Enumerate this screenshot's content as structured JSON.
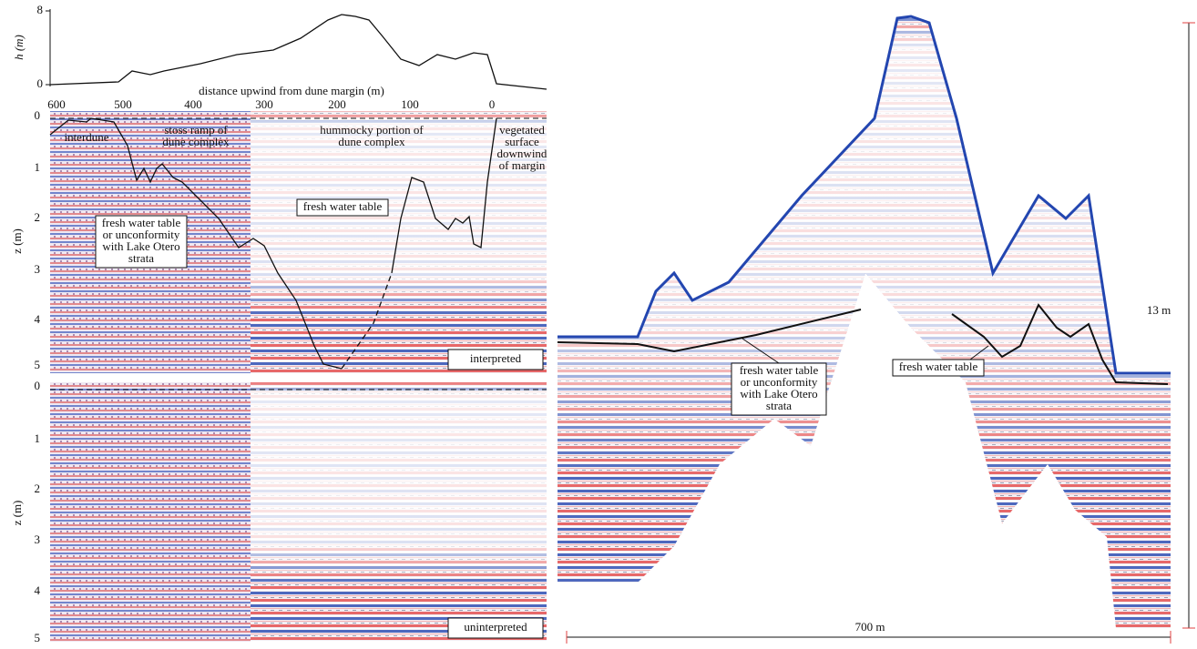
{
  "profile": {
    "y_label": "h (m)",
    "y_ticks": [
      8,
      0
    ],
    "x_label": "distance upwind from dune margin (m)",
    "x_ticks": [
      600,
      500,
      400,
      300,
      200,
      100,
      0
    ]
  },
  "panels": [
    {
      "z_label": "z (m)",
      "z_ticks": [
        0,
        1,
        2,
        3,
        4,
        5
      ],
      "tag": "interpreted",
      "annotations": [
        {
          "lines": [
            "interdune"
          ]
        },
        {
          "lines": [
            "stoss ramp of",
            "dune complex"
          ]
        },
        {
          "lines": [
            "hummocky portion of",
            "dune complex"
          ]
        },
        {
          "lines": [
            "vegetated",
            "surface",
            "downwind",
            "of margin"
          ]
        },
        {
          "lines": [
            "fresh water table"
          ]
        },
        {
          "lines": [
            "fresh water table",
            "or unconformity",
            "with Lake Otero",
            "strata"
          ]
        }
      ]
    },
    {
      "z_label": "z (m)",
      "z_ticks": [
        0,
        1,
        2,
        3,
        4,
        5
      ],
      "tag": "uninterpreted",
      "annotations": []
    }
  ],
  "right_panel": {
    "height_scale": "13 m",
    "width_scale": "700 m",
    "annotations": [
      {
        "lines": [
          "fresh water table",
          "or unconformity",
          "with Lake Otero",
          "strata"
        ]
      },
      {
        "lines": [
          "fresh water table"
        ]
      }
    ]
  }
}
